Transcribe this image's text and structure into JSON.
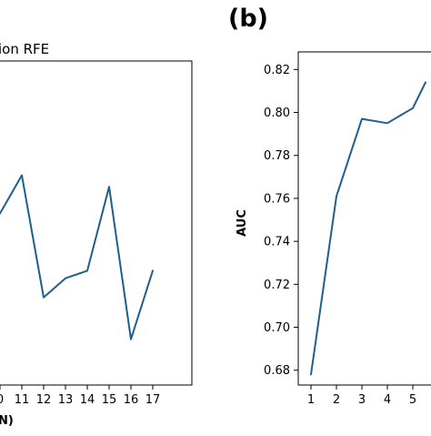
{
  "chart_data": [
    {
      "type": "line",
      "title": "ion RFE",
      "xlabel": "N)",
      "ylabel": "",
      "x_ticks": [
        "0",
        "11",
        "12",
        "13",
        "14",
        "15",
        "16",
        "17"
      ],
      "x": [
        10,
        11,
        12,
        13,
        14,
        15,
        16,
        17
      ],
      "series": [
        {
          "values": [
            0.785,
            0.795,
            0.763,
            0.768,
            0.77,
            0.792,
            0.752,
            0.77
          ]
        }
      ],
      "grid": false,
      "color": "#1f5f8b"
    },
    {
      "type": "line",
      "panel_label": "(b)",
      "title": "",
      "xlabel": "",
      "ylabel": "AUC",
      "x_ticks": [
        "1",
        "2",
        "3",
        "4",
        "5"
      ],
      "y_ticks": [
        "0.68",
        "0.70",
        "0.72",
        "0.74",
        "0.76",
        "0.78",
        "0.80",
        "0.82"
      ],
      "x": [
        1,
        2,
        3,
        4,
        5,
        5.5
      ],
      "series": [
        {
          "values": [
            0.678,
            0.761,
            0.797,
            0.795,
            0.802,
            0.814
          ]
        }
      ],
      "ylim": [
        0.6731,
        0.8282
      ],
      "grid": false,
      "color": "#1f5f8b"
    }
  ]
}
